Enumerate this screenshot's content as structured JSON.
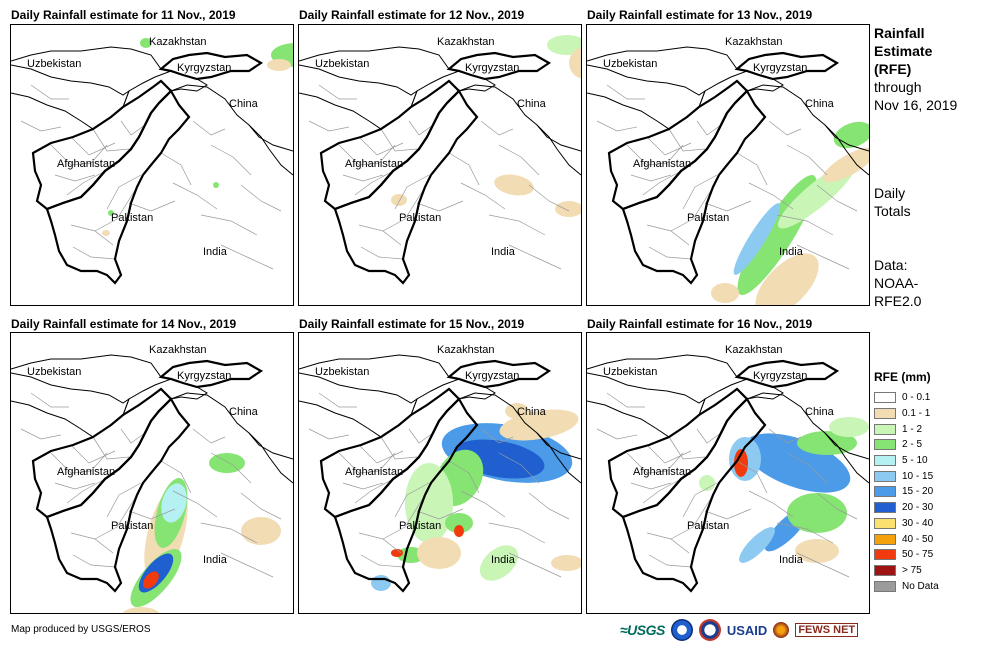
{
  "panels": [
    {
      "title": "Daily Rainfall estimate for 11 Nov., 2019"
    },
    {
      "title": "Daily Rainfall estimate for 12 Nov., 2019"
    },
    {
      "title": "Daily Rainfall estimate for 13 Nov., 2019"
    },
    {
      "title": "Daily Rainfall estimate for 14 Nov., 2019"
    },
    {
      "title": "Daily Rainfall estimate for 15 Nov., 2019"
    },
    {
      "title": "Daily Rainfall estimate for 16 Nov., 2019"
    }
  ],
  "map_labels": {
    "kazakhstan": "Kazakhstan",
    "uzbekistan": "Uzbekistan",
    "kyrgyzstan": "Kyrgyzstan",
    "china": "China",
    "afghanistan": "Afghanistan",
    "pakistan": "Pakistan",
    "india": "India"
  },
  "side": {
    "title_lines": [
      "Rainfall",
      "Estimate",
      "(RFE)"
    ],
    "through": "through",
    "date": "Nov 16, 2019",
    "totals_lines": [
      "Daily",
      "Totals"
    ],
    "data_lines": [
      "Data:",
      "NOAA-",
      "RFE2.0"
    ]
  },
  "legend": {
    "title": "RFE (mm)",
    "items": [
      {
        "label": "0 - 0.1",
        "color": "#ffffff"
      },
      {
        "label": "0.1 - 1",
        "color": "#f2dcb3"
      },
      {
        "label": "1 - 2",
        "color": "#c9f5b7"
      },
      {
        "label": "2 - 5",
        "color": "#86e472"
      },
      {
        "label": "5 - 10",
        "color": "#b5f0f2"
      },
      {
        "label": "10 - 15",
        "color": "#8ccaf2"
      },
      {
        "label": "15 - 20",
        "color": "#4c9be8"
      },
      {
        "label": "20 - 30",
        "color": "#1f5fcf"
      },
      {
        "label": "30 - 40",
        "color": "#f9e06f"
      },
      {
        "label": "40 - 50",
        "color": "#f5a10d"
      },
      {
        "label": "50 - 75",
        "color": "#f23a0f"
      },
      {
        "label": "> 75",
        "color": "#9e1414"
      },
      {
        "label": "No Data",
        "color": "#9b9b9b"
      }
    ]
  },
  "footer": "Map produced by USGS/EROS",
  "logos": {
    "usgs": "≈USGS",
    "usaid": "USAID",
    "fewsnet": "FEWS NET"
  }
}
